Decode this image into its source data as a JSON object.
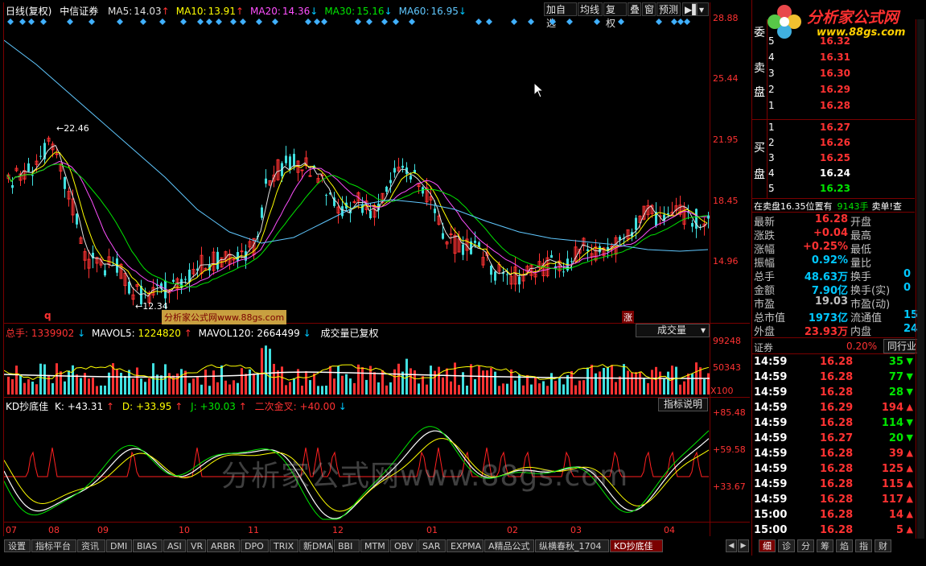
{
  "main_panel": {
    "title": "日线(复权)",
    "stock_name": "中信证券",
    "ma": [
      {
        "label": "MA5:",
        "value": "14.03",
        "arrow": "↑",
        "color": "#e0e0e0"
      },
      {
        "label": "MA10:",
        "value": "13.91",
        "arrow": "↑",
        "color": "#ffff00"
      },
      {
        "label": "MA20:",
        "value": "14.36",
        "arrow": "↓",
        "color": "#ff50ff"
      },
      {
        "label": "MA30:",
        "value": "15.16",
        "arrow": "↓",
        "color": "#00e600"
      },
      {
        "label": "MA60:",
        "value": "16.95",
        "arrow": "↓",
        "color": "#60c8ff"
      }
    ],
    "toolbar": [
      "加自选",
      "均线",
      "复权",
      "叠",
      "窗",
      "预测"
    ],
    "y_ticks": [
      "28.88",
      "25.44",
      "21.95",
      "18.45",
      "14.96"
    ],
    "high_label": "22.46",
    "low_label": "12.34",
    "watermark_label": "分析家公式网www.88gs.com",
    "q_marker": "q",
    "zhang_marker": "涨",
    "cursor_icon": "mouse-pointer-icon"
  },
  "volume_panel": {
    "label": "总手:",
    "value": "1339902",
    "arrow": "↓",
    "mavol5_label": "MAVOL5:",
    "mavol5_value": "1224820",
    "mavol5_arrow": "↑",
    "mavol120_label": "MAVOL120:",
    "mavol120_value": "2664499",
    "mavol120_arrow": "↓",
    "note": "成交量已复权",
    "selector": "成交量",
    "y_ticks": [
      "99248",
      "50343"
    ],
    "unit": "X100"
  },
  "kd_panel": {
    "name": "KD抄底佳",
    "k_label": "K:",
    "k_value": "+43.31",
    "k_arrow": "↑",
    "d_label": "D:",
    "d_value": "+33.95",
    "d_arrow": "↑",
    "j_label": "J:",
    "j_value": "+30.03",
    "j_arrow": "↑",
    "cross_label": "二次金叉:",
    "cross_value": "+40.00",
    "cross_arrow": "↓",
    "help_button": "指标说明",
    "y_ticks": [
      "+85.48",
      "+59.58",
      "+33.67"
    ],
    "watermark": "分析家公式网www.88gs.com"
  },
  "x_axis": [
    "07",
    "08",
    "09",
    "10",
    "11",
    "12",
    "01",
    "02",
    "03",
    "04"
  ],
  "bottom_tabs": [
    "设置",
    "指标平台",
    "资讯",
    "DMI",
    "BIAS",
    "ASI",
    "VR",
    "ARBR",
    "DPO",
    "TRIX",
    "新DMA",
    "BBI",
    "MTM",
    "OBV",
    "SAR",
    "EXPMA",
    "A精品公式",
    "纵横春秋_1704",
    "KD抄底佳"
  ],
  "right_bottom_tabs": [
    "细",
    "诊",
    "分",
    "筹",
    "焰",
    "指",
    "财"
  ],
  "logo": {
    "text": "分析家公式网",
    "url": "www.88gs.com"
  },
  "order_book": {
    "sell_label": [
      "委",
      "卖",
      "盘"
    ],
    "buy_label": [
      "买",
      "盘"
    ],
    "sell": [
      {
        "level": "5",
        "price": "16.32"
      },
      {
        "level": "4",
        "price": "16.31"
      },
      {
        "level": "3",
        "price": "16.30"
      },
      {
        "level": "2",
        "price": "16.29"
      },
      {
        "level": "1",
        "price": "16.28"
      }
    ],
    "buy": [
      {
        "level": "1",
        "price": "16.27"
      },
      {
        "level": "2",
        "price": "16.26"
      },
      {
        "level": "3",
        "price": "16.25"
      },
      {
        "level": "4",
        "price": "16.24"
      },
      {
        "level": "5",
        "price": "16.23"
      }
    ],
    "status_line": {
      "prefix": "在卖盘",
      "price": "16.35",
      "mid": "位置有",
      "qty": "9143手",
      "suffix": "卖单!查"
    }
  },
  "quote": [
    {
      "l": "最新",
      "v": "16.28",
      "vc": "#ff3232",
      "l2": "开盘",
      "v2": ""
    },
    {
      "l": "涨跌",
      "v": "+0.04",
      "vc": "#ff3232",
      "l2": "最高",
      "v2": ""
    },
    {
      "l": "涨幅",
      "v": "+0.25%",
      "vc": "#ff3232",
      "l2": "最低",
      "v2": ""
    },
    {
      "l": "振幅",
      "v": "0.92%",
      "vc": "#00c8ff",
      "l2": "量比",
      "v2": ""
    },
    {
      "l": "总手",
      "v": "48.63万",
      "vc": "#00c8ff",
      "l2": "换手",
      "v2": "0"
    },
    {
      "l": "金额",
      "v": "7.90亿",
      "vc": "#00c8ff",
      "l2": "换手(实)",
      "v2": "0"
    },
    {
      "l": "市盈",
      "v": "19.03",
      "vc": "#c0c0c0",
      "l2": "市盈(动)",
      "v2": ""
    },
    {
      "l": "总市值",
      "v": "1973亿",
      "vc": "#00c8ff",
      "l2": "流通值",
      "v2": "15"
    },
    {
      "l": "外盘",
      "v": "23.93万",
      "vc": "#ff3232",
      "l2": "内盘",
      "v2": "24"
    }
  ],
  "sector": {
    "name": "证券",
    "change": "0.20%",
    "button": "同行业"
  },
  "ticks": [
    {
      "t": "14:59",
      "p": "16.28",
      "v": "35",
      "dir": "down"
    },
    {
      "t": "14:59",
      "p": "16.28",
      "v": "77",
      "dir": "down"
    },
    {
      "t": "14:59",
      "p": "16.28",
      "v": "28",
      "dir": "down"
    },
    {
      "t": "14:59",
      "p": "16.29",
      "v": "194",
      "dir": "up"
    },
    {
      "t": "14:59",
      "p": "16.28",
      "v": "114",
      "dir": "down"
    },
    {
      "t": "14:59",
      "p": "16.27",
      "v": "20",
      "dir": "down"
    },
    {
      "t": "14:59",
      "p": "16.28",
      "v": "39",
      "dir": "up"
    },
    {
      "t": "14:59",
      "p": "16.28",
      "v": "125",
      "dir": "up"
    },
    {
      "t": "14:59",
      "p": "16.28",
      "v": "115",
      "dir": "up"
    },
    {
      "t": "14:59",
      "p": "16.28",
      "v": "117",
      "dir": "up"
    },
    {
      "t": "15:00",
      "p": "16.28",
      "v": "14",
      "dir": "up"
    },
    {
      "t": "15:00",
      "p": "16.28",
      "v": "5",
      "dir": "up"
    }
  ],
  "colors": {
    "up": "#ff3232",
    "down": "#00e600",
    "frame": "#7a0000",
    "cyan": "#00c8ff"
  }
}
